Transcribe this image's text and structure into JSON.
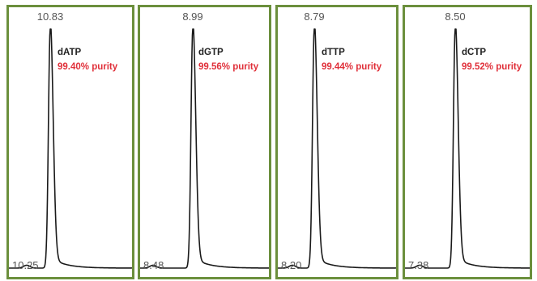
{
  "chart_data": [
    {
      "type": "line",
      "compound": "dATP",
      "purity_label": "99.40% purity",
      "purity_percent": 99.4,
      "peak_retention_time_label": "10.83",
      "start_retention_time_label": "10.25",
      "peak_retention_time": 10.83,
      "start_retention_time": 10.25,
      "peak_color": "#1a1a1a"
    },
    {
      "type": "line",
      "compound": "dGTP",
      "purity_label": "99.56% purity",
      "purity_percent": 99.56,
      "peak_retention_time_label": "8.99",
      "start_retention_time_label": "8.48",
      "peak_retention_time": 8.99,
      "start_retention_time": 8.48,
      "peak_color": "#1a1a1a"
    },
    {
      "type": "line",
      "compound": "dTTP",
      "purity_label": "99.44% purity",
      "purity_percent": 99.44,
      "peak_retention_time_label": "8.79",
      "start_retention_time_label": "8.20",
      "peak_retention_time": 8.79,
      "start_retention_time": 8.2,
      "peak_color": "#1a1a1a"
    },
    {
      "type": "line",
      "compound": "dCTP",
      "purity_label": "99.52% purity",
      "purity_percent": 99.52,
      "peak_retention_time_label": "8.50",
      "start_retention_time_label": "7.38",
      "peak_retention_time": 8.5,
      "start_retention_time": 7.38,
      "peak_color": "#1a1a1a"
    }
  ],
  "colors": {
    "frame": "#6b8f3c",
    "purity_text": "#e0303a",
    "trace": "#1a1a1a"
  }
}
